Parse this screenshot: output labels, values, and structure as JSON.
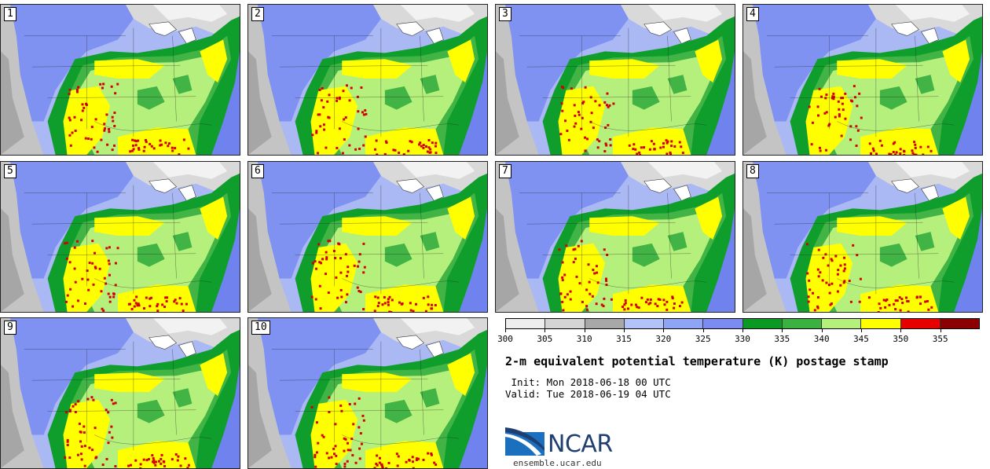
{
  "panels": [
    {
      "label": "1"
    },
    {
      "label": "2"
    },
    {
      "label": "3"
    },
    {
      "label": "4"
    },
    {
      "label": "5"
    },
    {
      "label": "6"
    },
    {
      "label": "7"
    },
    {
      "label": "8"
    },
    {
      "label": "9"
    },
    {
      "label": "10"
    }
  ],
  "colorbar": {
    "colors": [
      "#eeeeee",
      "#d4d4d4",
      "#a8a8a8",
      "#b3c3f7",
      "#8ea4f4",
      "#7a8cf2",
      "#0a9a24",
      "#3bb23f",
      "#b4f07a",
      "#ffff00",
      "#e60000",
      "#8b0000"
    ],
    "ticks": [
      "300",
      "305",
      "310",
      "315",
      "320",
      "325",
      "330",
      "335",
      "340",
      "345",
      "350",
      "355"
    ]
  },
  "title": "2-m equivalent potential temperature (K) postage stamp",
  "init_line": " Init: Mon 2018-06-18 00 UTC",
  "valid_line": "Valid: Tue 2018-06-19 04 UTC",
  "logo": {
    "text": "NCAR",
    "color": "#1f3f72"
  },
  "site": "ensemble.ucar.edu"
}
